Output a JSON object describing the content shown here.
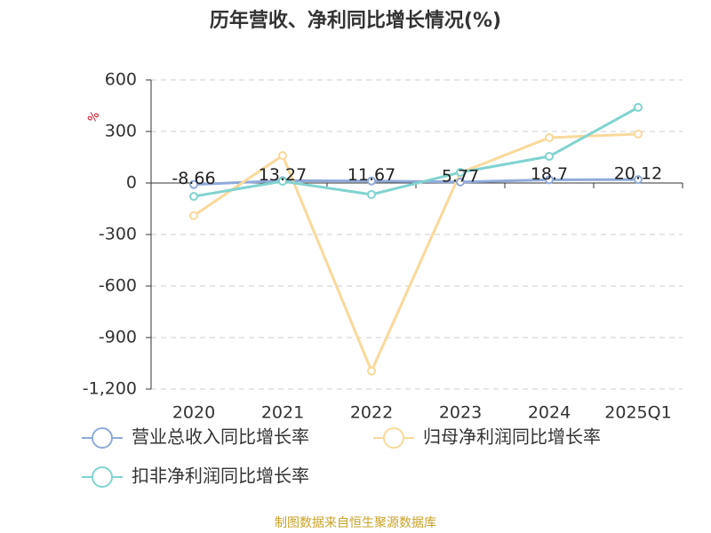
{
  "chart_data": {
    "type": "line",
    "title": "历年营收、净利同比增长情况(%)",
    "y_label": "%",
    "categories": [
      "2020",
      "2021",
      "2022",
      "2023",
      "2024",
      "2025Q1"
    ],
    "series": [
      {
        "name": "营业总收入同比增长率",
        "color": "#8faad9",
        "values": [
          -8.66,
          13.27,
          11.67,
          5.77,
          18.7,
          20.12
        ],
        "show_labels": true
      },
      {
        "name": "归母净利润同比增长率",
        "color": "#f9d99a",
        "values": [
          -190,
          160,
          -1095,
          60,
          264,
          285
        ]
      },
      {
        "name": "扣非净利润同比增长率",
        "color": "#80d3cf",
        "values": [
          -78,
          10,
          -67,
          62,
          155,
          440
        ]
      }
    ],
    "ylim": [
      -1200,
      600
    ],
    "yticks": [
      {
        "value": -1200,
        "label": "-1,200"
      },
      -900,
      -600,
      -300,
      0,
      300,
      600
    ],
    "grid": true,
    "source": "制图数据来自恒生聚源数据库"
  }
}
